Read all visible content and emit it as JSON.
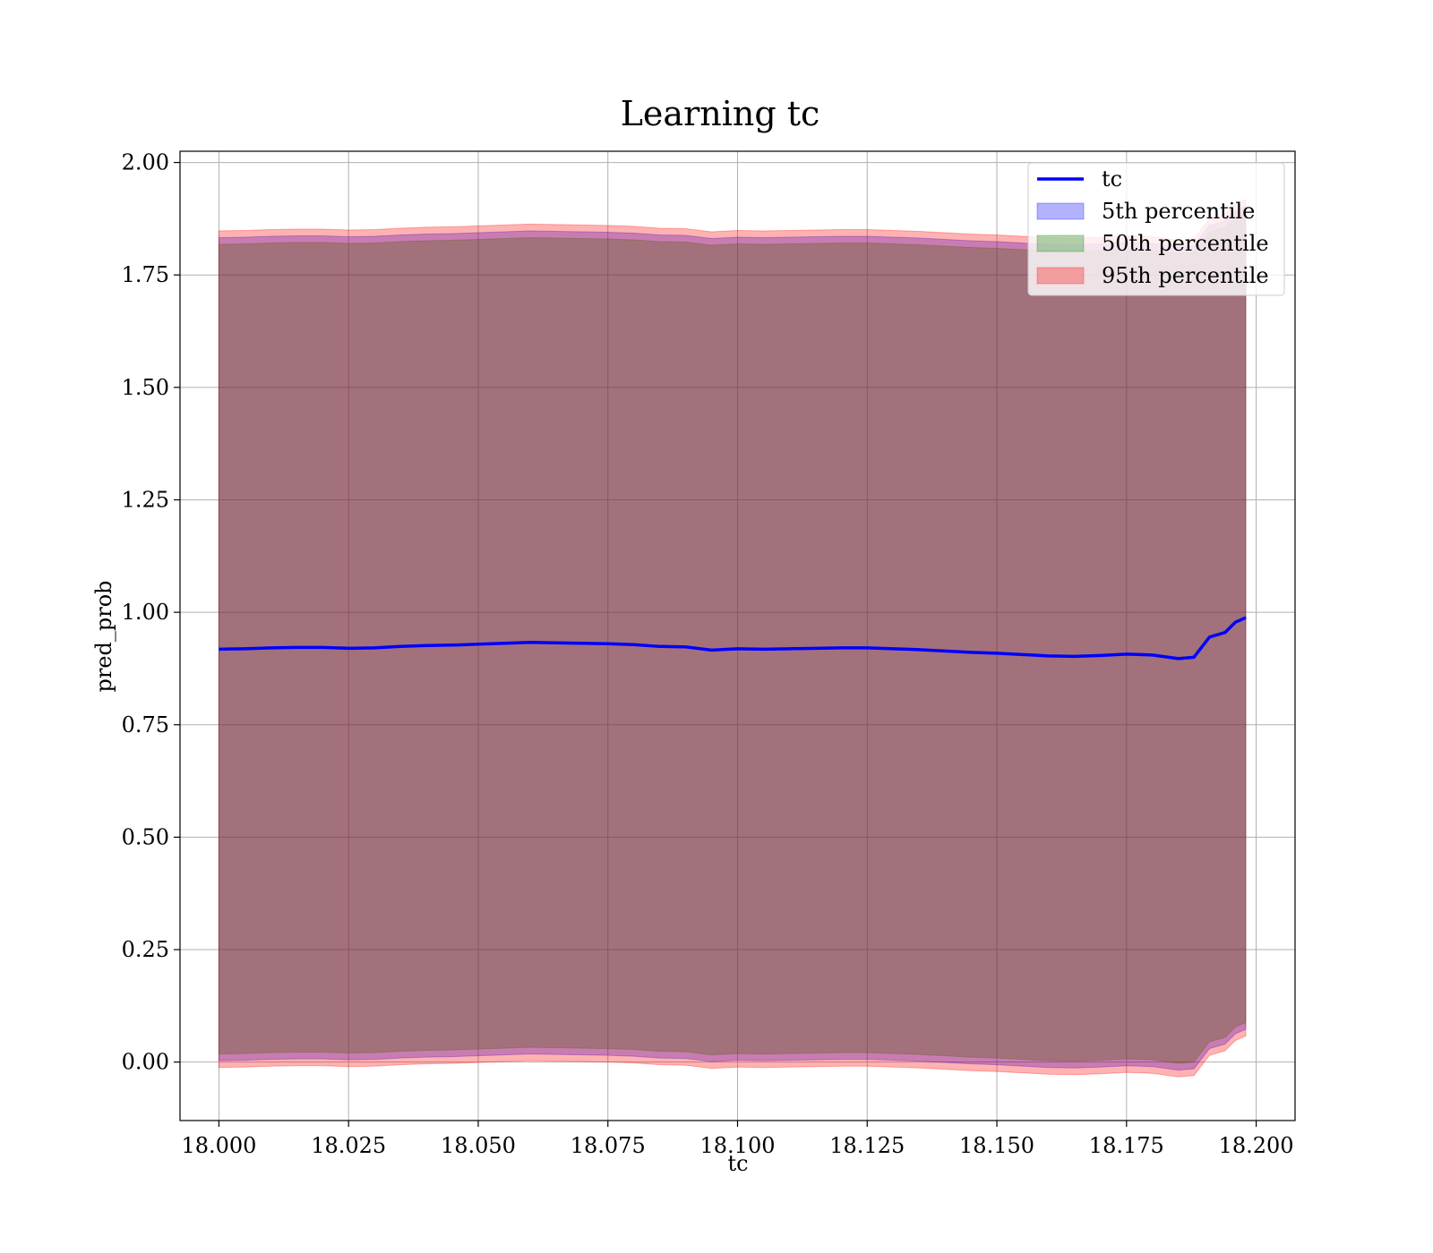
{
  "chart_data": {
    "type": "area",
    "title": "Learning tc",
    "xlabel": "tc",
    "ylabel": "pred_prob",
    "xlim": [
      17.9925,
      18.2075
    ],
    "ylim": [
      -0.13,
      2.025
    ],
    "xticks": [
      18.0,
      18.025,
      18.05,
      18.075,
      18.1,
      18.125,
      18.15,
      18.175,
      18.2
    ],
    "xtick_labels": [
      "18.000",
      "18.025",
      "18.050",
      "18.075",
      "18.100",
      "18.125",
      "18.150",
      "18.175",
      "18.200"
    ],
    "yticks": [
      0.0,
      0.25,
      0.5,
      0.75,
      1.0,
      1.25,
      1.5,
      1.75,
      2.0
    ],
    "ytick_labels": [
      "0.00",
      "0.25",
      "0.50",
      "0.75",
      "1.00",
      "1.25",
      "1.50",
      "1.75",
      "2.00"
    ],
    "grid": true,
    "legend_position": "top-right",
    "x": [
      18.0,
      18.005,
      18.01,
      18.015,
      18.02,
      18.025,
      18.03,
      18.035,
      18.04,
      18.045,
      18.05,
      18.055,
      18.06,
      18.065,
      18.07,
      18.075,
      18.08,
      18.085,
      18.09,
      18.095,
      18.1,
      18.105,
      18.11,
      18.115,
      18.12,
      18.125,
      18.13,
      18.135,
      18.14,
      18.145,
      18.15,
      18.155,
      18.16,
      18.165,
      18.17,
      18.175,
      18.18,
      18.185,
      18.188,
      18.191,
      18.194,
      18.196,
      18.198
    ],
    "series": [
      {
        "name": "tc",
        "type": "line",
        "color": "#0000ff",
        "values": [
          0.918,
          0.919,
          0.921,
          0.922,
          0.922,
          0.92,
          0.921,
          0.924,
          0.926,
          0.927,
          0.929,
          0.931,
          0.933,
          0.932,
          0.931,
          0.93,
          0.928,
          0.924,
          0.923,
          0.916,
          0.919,
          0.918,
          0.919,
          0.92,
          0.921,
          0.921,
          0.919,
          0.917,
          0.914,
          0.911,
          0.909,
          0.906,
          0.903,
          0.902,
          0.904,
          0.907,
          0.905,
          0.897,
          0.9,
          0.945,
          0.955,
          0.978,
          0.988
        ]
      },
      {
        "name": "5th percentile",
        "type": "band",
        "color": "#0000ff",
        "lower": [
          0.003,
          0.004,
          0.006,
          0.007,
          0.007,
          0.005,
          0.006,
          0.009,
          0.011,
          0.012,
          0.014,
          0.016,
          0.018,
          0.017,
          0.016,
          0.015,
          0.013,
          0.009,
          0.008,
          0.001,
          0.004,
          0.003,
          0.004,
          0.005,
          0.006,
          0.006,
          0.004,
          0.002,
          -0.001,
          -0.004,
          -0.006,
          -0.009,
          -0.012,
          -0.013,
          -0.011,
          -0.008,
          -0.01,
          -0.018,
          -0.015,
          0.03,
          0.04,
          0.063,
          0.073
        ],
        "upper": [
          1.833,
          1.834,
          1.836,
          1.837,
          1.837,
          1.835,
          1.836,
          1.839,
          1.841,
          1.842,
          1.844,
          1.846,
          1.848,
          1.847,
          1.846,
          1.845,
          1.843,
          1.839,
          1.838,
          1.831,
          1.834,
          1.833,
          1.834,
          1.835,
          1.836,
          1.836,
          1.834,
          1.832,
          1.829,
          1.826,
          1.824,
          1.821,
          1.818,
          1.817,
          1.819,
          1.822,
          1.82,
          1.812,
          1.815,
          1.86,
          1.87,
          1.893,
          1.903
        ]
      },
      {
        "name": "50th percentile",
        "type": "band",
        "color": "#008000",
        "lower": [
          0.018,
          0.019,
          0.021,
          0.022,
          0.022,
          0.02,
          0.021,
          0.024,
          0.026,
          0.027,
          0.029,
          0.031,
          0.033,
          0.032,
          0.031,
          0.03,
          0.028,
          0.024,
          0.023,
          0.016,
          0.019,
          0.018,
          0.019,
          0.02,
          0.021,
          0.021,
          0.019,
          0.017,
          0.014,
          0.011,
          0.009,
          0.006,
          0.003,
          0.002,
          0.004,
          0.007,
          0.005,
          -0.003,
          0.0,
          0.045,
          0.055,
          0.078,
          0.088
        ],
        "upper": [
          1.818,
          1.819,
          1.821,
          1.822,
          1.822,
          1.82,
          1.821,
          1.824,
          1.826,
          1.827,
          1.829,
          1.831,
          1.833,
          1.832,
          1.831,
          1.83,
          1.828,
          1.824,
          1.823,
          1.816,
          1.819,
          1.818,
          1.819,
          1.82,
          1.821,
          1.821,
          1.819,
          1.817,
          1.814,
          1.811,
          1.809,
          1.806,
          1.803,
          1.802,
          1.804,
          1.807,
          1.805,
          1.797,
          1.8,
          1.845,
          1.855,
          1.878,
          1.888
        ]
      },
      {
        "name": "95th percentile",
        "type": "band",
        "color": "#ff0000",
        "lower": [
          -0.012,
          -0.011,
          -0.009,
          -0.008,
          -0.008,
          -0.01,
          -0.009,
          -0.006,
          -0.004,
          -0.003,
          -0.001,
          0.001,
          0.003,
          0.002,
          0.001,
          0.0,
          -0.002,
          -0.006,
          -0.007,
          -0.014,
          -0.011,
          -0.012,
          -0.011,
          -0.01,
          -0.009,
          -0.009,
          -0.011,
          -0.013,
          -0.016,
          -0.019,
          -0.021,
          -0.024,
          -0.027,
          -0.028,
          -0.026,
          -0.023,
          -0.025,
          -0.033,
          -0.03,
          0.015,
          0.025,
          0.048,
          0.058
        ],
        "upper": [
          1.848,
          1.849,
          1.851,
          1.852,
          1.852,
          1.85,
          1.851,
          1.854,
          1.856,
          1.857,
          1.859,
          1.861,
          1.863,
          1.862,
          1.861,
          1.86,
          1.858,
          1.854,
          1.853,
          1.846,
          1.849,
          1.848,
          1.849,
          1.85,
          1.851,
          1.851,
          1.849,
          1.847,
          1.844,
          1.841,
          1.839,
          1.836,
          1.833,
          1.832,
          1.834,
          1.837,
          1.835,
          1.827,
          1.83,
          1.875,
          1.885,
          1.908,
          1.918
        ]
      }
    ]
  }
}
